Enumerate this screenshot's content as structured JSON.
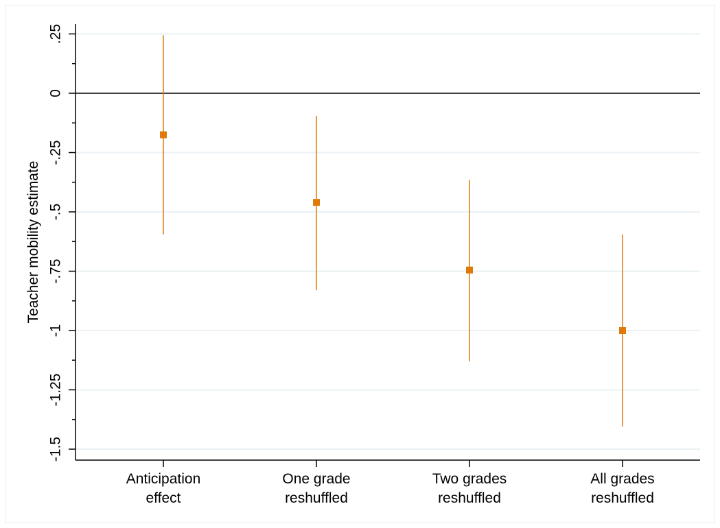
{
  "chart_data": {
    "type": "scatter",
    "ylabel": "Teacher mobility estimate",
    "xlabel": "",
    "ylim": [
      -1.55,
      0.28
    ],
    "yticks": [
      0.25,
      0,
      -0.25,
      -0.5,
      -0.75,
      -1,
      -1.25,
      -1.5
    ],
    "ytick_labels": [
      ".25",
      "0",
      "-.25",
      "-.5",
      "-.75",
      "-1",
      "-1.25",
      "-1.5"
    ],
    "grid": true,
    "reference_line_y": 0,
    "categories": [
      {
        "line1": "Anticipation",
        "line2": "effect"
      },
      {
        "line1": "One grade",
        "line2": "reshuffled"
      },
      {
        "line1": "Two grades",
        "line2": "reshuffled"
      },
      {
        "line1": "All grades",
        "line2": "reshuffled"
      }
    ],
    "series": [
      {
        "points": [
          {
            "estimate": -0.175,
            "ci_low": -0.595,
            "ci_high": 0.245
          },
          {
            "estimate": -0.46,
            "ci_low": -0.83,
            "ci_high": -0.095
          },
          {
            "estimate": -0.745,
            "ci_low": -1.13,
            "ci_high": -0.365
          },
          {
            "estimate": -1.0,
            "ci_low": -1.405,
            "ci_high": -0.595
          }
        ]
      }
    ],
    "colors": {
      "marker": "#e0780a",
      "ci_line": "#e0780a",
      "gridline": "#eaf0f3",
      "axis": "#000000"
    }
  }
}
